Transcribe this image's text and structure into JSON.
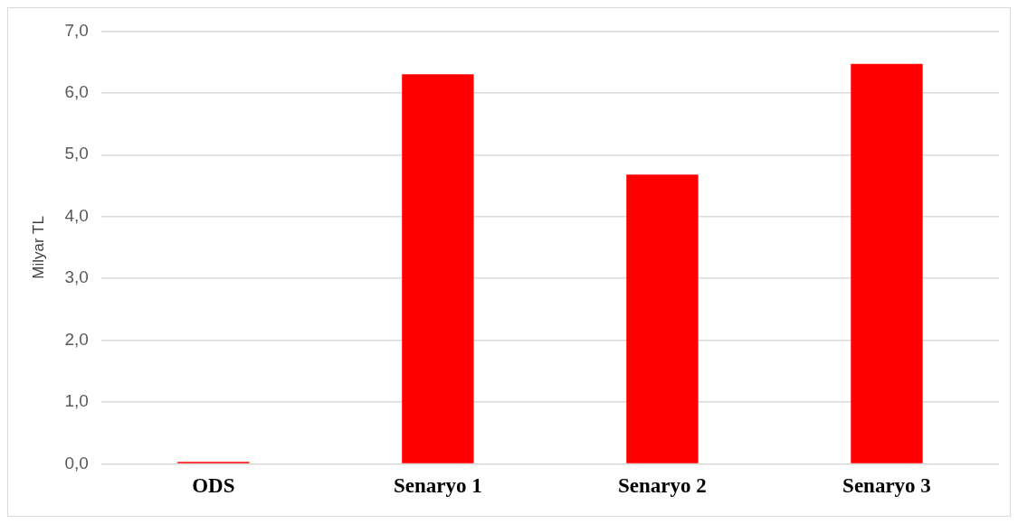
{
  "chart_data": {
    "type": "bar",
    "ylabel": "Milyar TL",
    "categories": [
      "ODS",
      "Senaryo 1",
      "Senaryo 2",
      "Senaryo 3"
    ],
    "values": [
      0.03,
      6.3,
      4.68,
      6.47
    ],
    "color": "#ff0000",
    "ylim": [
      0,
      7
    ],
    "yticks": [
      {
        "value": 0,
        "label": "0,0"
      },
      {
        "value": 1,
        "label": "1,0"
      },
      {
        "value": 2,
        "label": "2,0"
      },
      {
        "value": 3,
        "label": "3,0"
      },
      {
        "value": 4,
        "label": "4,0"
      },
      {
        "value": 5,
        "label": "5,0"
      },
      {
        "value": 6,
        "label": "6,0"
      },
      {
        "value": 7,
        "label": "7,0"
      }
    ],
    "grid": "y"
  }
}
